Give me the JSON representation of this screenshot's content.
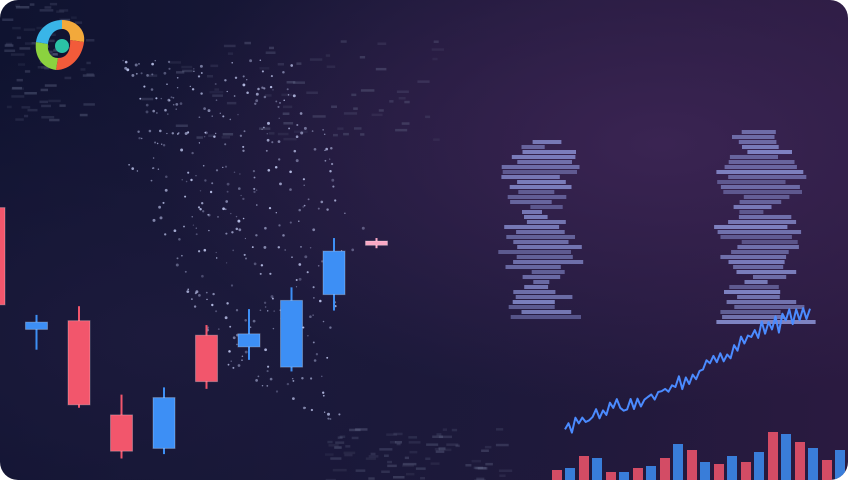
{
  "colors": {
    "bull": "#3d8ff5",
    "bear": "#f2566c",
    "line": "#4b8bff",
    "heatmap": "#8d95d8",
    "dots": "#cfd7ff"
  },
  "logo_icon": "colorful-swirl-logo-icon",
  "chart_data": [
    {
      "type": "candlestick",
      "candles": [
        {
          "open": 112,
          "close": 45,
          "high": 122,
          "low": 40
        },
        {
          "open": 33,
          "close": 28,
          "high": 38,
          "low": 14
        },
        {
          "open": 34,
          "close": -24,
          "high": 44,
          "low": -26
        },
        {
          "open": -31,
          "close": -56,
          "high": -17,
          "low": -61
        },
        {
          "open": -19,
          "close": -54,
          "high": -12,
          "low": -58
        },
        {
          "open": 24,
          "close": -8,
          "high": 31,
          "low": -13
        },
        {
          "open": 25,
          "close": 16,
          "high": 42,
          "low": 7
        },
        {
          "open": 48,
          "close": 2,
          "high": 57,
          "low": -1
        },
        {
          "open": 82,
          "close": 52,
          "high": 91,
          "low": 41
        },
        {
          "open": 89,
          "close": 86,
          "high": 91,
          "low": 84
        }
      ]
    },
    {
      "type": "line",
      "values": [
        12,
        14,
        10,
        16,
        13,
        18,
        15,
        20,
        17,
        22,
        20,
        25,
        21,
        27,
        23,
        30,
        26,
        28,
        24,
        31,
        28,
        34,
        30,
        36,
        33,
        38,
        35,
        41,
        37,
        43,
        40,
        46,
        41,
        48,
        44,
        52,
        47,
        55,
        50,
        58,
        54,
        62,
        57,
        65,
        60,
        68,
        63,
        70,
        66,
        74,
        70,
        78,
        74,
        82,
        78,
        86,
        80,
        90,
        84,
        94,
        88,
        92,
        86,
        95,
        89,
        97,
        92,
        98,
        94,
        99,
        95,
        100
      ]
    },
    {
      "type": "bar",
      "series": [
        {
          "name": "red",
          "values": [
            10,
            24,
            8,
            12,
            22,
            30,
            16,
            18,
            48,
            38,
            20
          ]
        },
        {
          "name": "blue",
          "values": [
            12,
            22,
            8,
            14,
            36,
            18,
            24,
            28,
            46,
            32,
            30
          ]
        }
      ]
    }
  ]
}
